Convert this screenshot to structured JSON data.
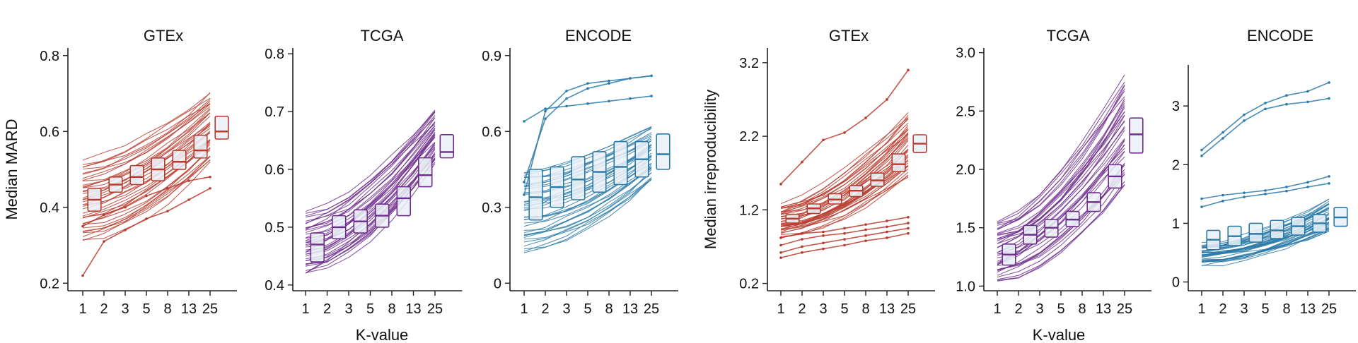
{
  "figure": {
    "group_a": {
      "ylabel": "Median MARD",
      "xlabel": "K-value"
    },
    "group_b": {
      "ylabel": "Median irreproducibility",
      "xlabel": "K-value"
    }
  },
  "colors": {
    "GTEx": "#b83a2c",
    "TCGA": "#6e2d8c",
    "ENCODE": "#2a7aa8",
    "box_fill": "#e9f0f6"
  },
  "chart_data": [
    {
      "type": "line",
      "title": "GTEx",
      "group": "a",
      "color_key": "GTEx",
      "categories": [
        "1",
        "2",
        "3",
        "5",
        "8",
        "13",
        "25"
      ],
      "ylim": [
        0.18,
        0.82
      ],
      "yticks": [
        0.2,
        0.4,
        0.6,
        0.8
      ],
      "ytick_labels": [
        "0.2",
        "0.4",
        "0.6",
        "0.8"
      ],
      "series_summary": {
        "count": 40,
        "low_start": 0.31,
        "low_end": 0.52,
        "high_start": 0.52,
        "high_end": 0.7
      },
      "highlight_series": [
        {
          "name": "outlier-low",
          "values": [
            0.22,
            0.31,
            0.34,
            0.37,
            0.39,
            0.42,
            0.45
          ]
        },
        {
          "name": "outlier-mid",
          "values": [
            0.35,
            0.38,
            0.4,
            0.43,
            0.45,
            0.47,
            0.48
          ]
        }
      ],
      "boxes": [
        {
          "q1": 0.39,
          "median": 0.42,
          "q3": 0.45
        },
        {
          "q1": 0.44,
          "median": 0.46,
          "q3": 0.48
        },
        {
          "q1": 0.46,
          "median": 0.48,
          "q3": 0.51
        },
        {
          "q1": 0.47,
          "median": 0.5,
          "q3": 0.53
        },
        {
          "q1": 0.5,
          "median": 0.52,
          "q3": 0.55
        },
        {
          "q1": 0.53,
          "median": 0.55,
          "q3": 0.59
        },
        {
          "q1": 0.58,
          "median": 0.6,
          "q3": 0.64
        }
      ]
    },
    {
      "type": "line",
      "title": "TCGA",
      "group": "a",
      "color_key": "TCGA",
      "categories": [
        "1",
        "2",
        "3",
        "5",
        "8",
        "13",
        "25"
      ],
      "ylim": [
        0.39,
        0.81
      ],
      "yticks": [
        0.4,
        0.5,
        0.6,
        0.7,
        0.8
      ],
      "ytick_labels": [
        "0.4",
        "0.5",
        "0.6",
        "0.7",
        "0.8"
      ],
      "series_summary": {
        "count": 40,
        "low_start": 0.42,
        "low_end": 0.61,
        "high_start": 0.52,
        "high_end": 0.7
      },
      "highlight_series": [],
      "boxes": [
        {
          "q1": 0.44,
          "median": 0.47,
          "q3": 0.49
        },
        {
          "q1": 0.48,
          "median": 0.5,
          "q3": 0.52
        },
        {
          "q1": 0.49,
          "median": 0.51,
          "q3": 0.53
        },
        {
          "q1": 0.5,
          "median": 0.52,
          "q3": 0.54
        },
        {
          "q1": 0.52,
          "median": 0.55,
          "q3": 0.57
        },
        {
          "q1": 0.57,
          "median": 0.59,
          "q3": 0.62
        },
        {
          "q1": 0.62,
          "median": 0.63,
          "q3": 0.66
        }
      ]
    },
    {
      "type": "line",
      "title": "ENCODE",
      "group": "a",
      "color_key": "ENCODE",
      "categories": [
        "1",
        "2",
        "3",
        "5",
        "8",
        "13",
        "25"
      ],
      "ylim": [
        -0.03,
        0.93
      ],
      "yticks": [
        0,
        0.3,
        0.6,
        0.9
      ],
      "ytick_labels": [
        "0",
        "0.3",
        "0.6",
        "0.9"
      ],
      "series_summary": {
        "count": 40,
        "low_start": 0.13,
        "low_end": 0.4,
        "high_start": 0.45,
        "high_end": 0.62
      },
      "highlight_series": [
        {
          "name": "top-1",
          "values": [
            0.35,
            0.68,
            0.76,
            0.79,
            0.8,
            0.81,
            0.82
          ]
        },
        {
          "name": "top-2",
          "values": [
            0.4,
            0.65,
            0.73,
            0.77,
            0.79,
            0.81,
            0.82
          ]
        },
        {
          "name": "top-3",
          "values": [
            0.64,
            0.69,
            0.7,
            0.71,
            0.72,
            0.73,
            0.74
          ]
        }
      ],
      "boxes": [
        {
          "q1": 0.25,
          "median": 0.34,
          "q3": 0.45
        },
        {
          "q1": 0.3,
          "median": 0.38,
          "q3": 0.46
        },
        {
          "q1": 0.33,
          "median": 0.41,
          "q3": 0.5
        },
        {
          "q1": 0.36,
          "median": 0.44,
          "q3": 0.52
        },
        {
          "q1": 0.39,
          "median": 0.46,
          "q3": 0.56
        },
        {
          "q1": 0.42,
          "median": 0.49,
          "q3": 0.56
        },
        {
          "q1": 0.45,
          "median": 0.51,
          "q3": 0.59
        }
      ]
    },
    {
      "type": "line",
      "title": "GTEx",
      "group": "b",
      "color_key": "GTEx",
      "categories": [
        "1",
        "2",
        "3",
        "5",
        "8",
        "13",
        "25"
      ],
      "ylim": [
        0.1,
        3.4
      ],
      "yticks": [
        0.2,
        1.2,
        2.2,
        3.2
      ],
      "ytick_labels": [
        "0.2",
        "1.2",
        "2.2",
        "3.2"
      ],
      "series_summary": {
        "count": 40,
        "low_start": 0.85,
        "low_end": 1.65,
        "high_start": 1.25,
        "high_end": 2.5
      },
      "highlight_series": [
        {
          "name": "outlier-high",
          "values": [
            1.55,
            1.85,
            2.15,
            2.25,
            2.45,
            2.7,
            3.1
          ]
        },
        {
          "name": "low-1",
          "values": [
            0.82,
            0.88,
            0.9,
            0.95,
            1.0,
            1.05,
            1.1
          ]
        },
        {
          "name": "low-2",
          "values": [
            0.72,
            0.8,
            0.85,
            0.88,
            0.93,
            0.97,
            1.02
          ]
        },
        {
          "name": "low-3",
          "values": [
            0.62,
            0.7,
            0.75,
            0.8,
            0.85,
            0.9,
            0.95
          ]
        },
        {
          "name": "low-4",
          "values": [
            0.55,
            0.62,
            0.67,
            0.72,
            0.78,
            0.82,
            0.88
          ]
        }
      ],
      "boxes": [
        {
          "q1": 1.02,
          "median": 1.08,
          "q3": 1.14
        },
        {
          "q1": 1.15,
          "median": 1.22,
          "q3": 1.28
        },
        {
          "q1": 1.28,
          "median": 1.34,
          "q3": 1.42
        },
        {
          "q1": 1.38,
          "median": 1.46,
          "q3": 1.53
        },
        {
          "q1": 1.52,
          "median": 1.6,
          "q3": 1.7
        },
        {
          "q1": 1.72,
          "median": 1.82,
          "q3": 1.96
        },
        {
          "q1": 1.98,
          "median": 2.1,
          "q3": 2.22
        }
      ]
    },
    {
      "type": "line",
      "title": "TCGA",
      "group": "b",
      "color_key": "TCGA",
      "categories": [
        "1",
        "2",
        "3",
        "5",
        "8",
        "13",
        "25"
      ],
      "ylim": [
        0.96,
        3.04
      ],
      "yticks": [
        1.0,
        1.5,
        2.0,
        2.5,
        3.0
      ],
      "ytick_labels": [
        "1.0",
        "1.5",
        "2.0",
        "2.5",
        "3.0"
      ],
      "series_summary": {
        "count": 40,
        "low_start": 1.05,
        "low_end": 1.85,
        "high_start": 1.55,
        "high_end": 2.8
      },
      "highlight_series": [],
      "boxes": [
        {
          "q1": 1.18,
          "median": 1.27,
          "q3": 1.36
        },
        {
          "q1": 1.36,
          "median": 1.44,
          "q3": 1.52
        },
        {
          "q1": 1.42,
          "median": 1.5,
          "q3": 1.57
        },
        {
          "q1": 1.51,
          "median": 1.57,
          "q3": 1.64
        },
        {
          "q1": 1.64,
          "median": 1.72,
          "q3": 1.8
        },
        {
          "q1": 1.84,
          "median": 1.94,
          "q3": 2.04
        },
        {
          "q1": 2.14,
          "median": 2.3,
          "q3": 2.44
        }
      ]
    },
    {
      "type": "line",
      "title": "ENCODE",
      "group": "b",
      "color_key": "ENCODE",
      "categories": [
        "1",
        "2",
        "3",
        "5",
        "8",
        "13",
        "25"
      ],
      "ylim": [
        -0.15,
        3.7
      ],
      "yticks": [
        0,
        1,
        2,
        3
      ],
      "ytick_labels": [
        "0",
        "1",
        "2",
        "3"
      ],
      "series_summary": {
        "count": 40,
        "low_start": 0.32,
        "low_end": 0.85,
        "high_start": 0.65,
        "high_end": 1.4
      },
      "highlight_series": [
        {
          "name": "top-1",
          "values": [
            2.25,
            2.55,
            2.85,
            3.05,
            3.18,
            3.25,
            3.4
          ]
        },
        {
          "name": "top-2",
          "values": [
            2.15,
            2.45,
            2.75,
            2.95,
            3.03,
            3.07,
            3.13
          ]
        },
        {
          "name": "mid-1",
          "values": [
            1.42,
            1.48,
            1.52,
            1.56,
            1.62,
            1.7,
            1.8
          ]
        },
        {
          "name": "mid-2",
          "values": [
            1.28,
            1.38,
            1.45,
            1.5,
            1.55,
            1.62,
            1.68
          ]
        }
      ],
      "boxes": [
        {
          "q1": 0.55,
          "median": 0.72,
          "q3": 0.88
        },
        {
          "q1": 0.62,
          "median": 0.78,
          "q3": 0.95
        },
        {
          "q1": 0.68,
          "median": 0.82,
          "q3": 1.0
        },
        {
          "q1": 0.74,
          "median": 0.88,
          "q3": 1.05
        },
        {
          "q1": 0.8,
          "median": 0.95,
          "q3": 1.1
        },
        {
          "q1": 0.85,
          "median": 1.0,
          "q3": 1.15
        },
        {
          "q1": 0.95,
          "median": 1.1,
          "q3": 1.27
        }
      ]
    }
  ]
}
